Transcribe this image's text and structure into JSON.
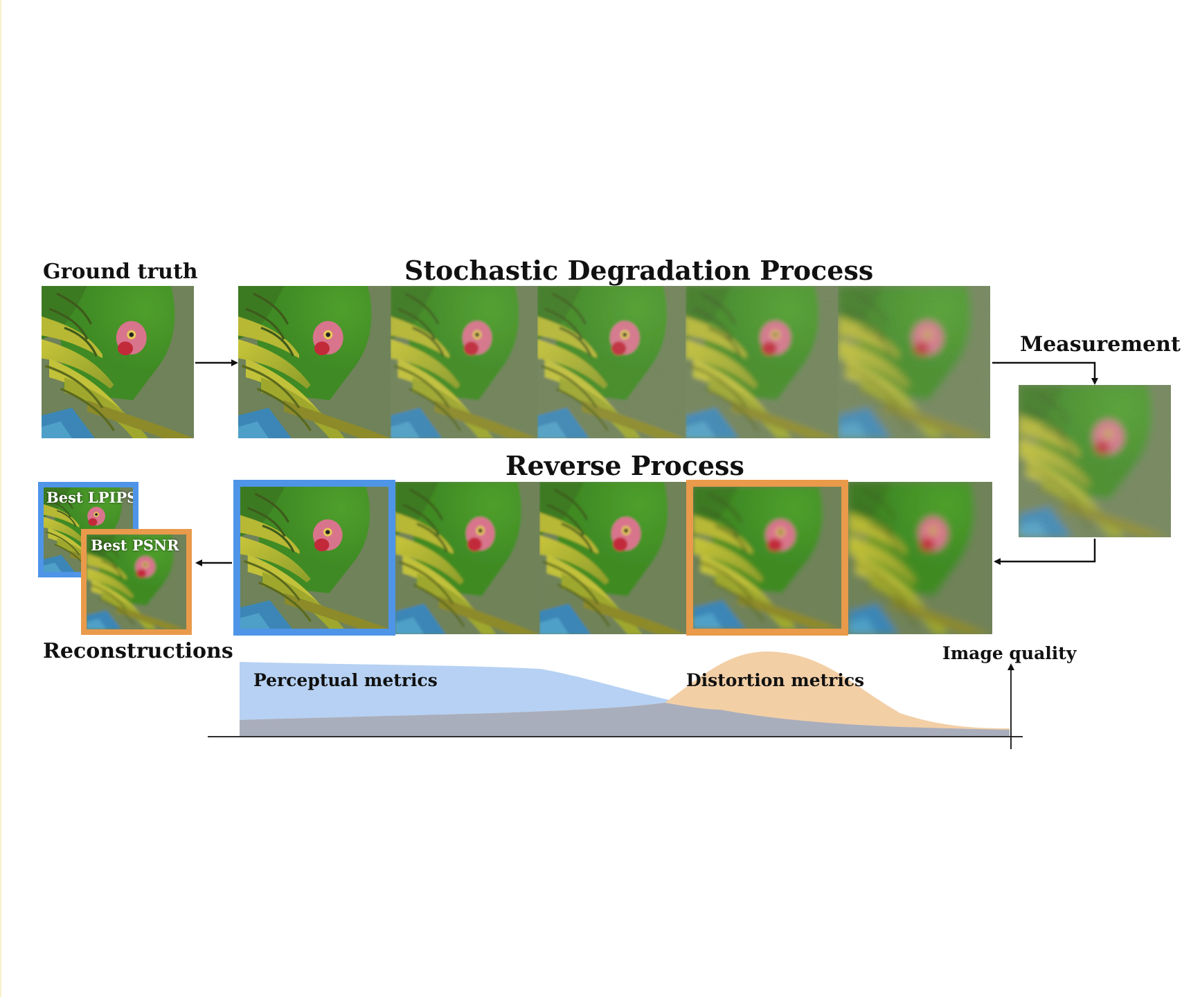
{
  "labels": {
    "ground_truth": "Ground truth",
    "degradation_title": "Stochastic Degradation Process",
    "measurement": "Measurement",
    "reverse_title": "Reverse Process",
    "best_lpips": "Best LPIPS",
    "best_psnr": "Best PSNR",
    "reconstructions": "Reconstructions",
    "image_quality": "Image quality",
    "perceptual_metrics": "Perceptual metrics",
    "distortion_metrics": "Distortion metrics"
  },
  "colors": {
    "perceptual_fill": "#b6d1f3",
    "distortion_fill": "#f3cfa6",
    "overlap_fill": "#a9aebc",
    "highlight_blue": "#4e95e8",
    "highlight_orange": "#e99a4a",
    "parrot_green": "#5f9a36",
    "background_olive": "#6f8259"
  },
  "images": {
    "ground_truth": "parrot-image",
    "degradation_sequence": [
      "parrot-image",
      "parrot-image-noisy-1",
      "parrot-image-noisy-2",
      "parrot-image-noisy-3",
      "parrot-image-noisy-4"
    ],
    "measurement": "parrot-image-degraded",
    "reverse_sequence": [
      "parrot-image-reconstruction-1",
      "parrot-image-reconstruction-2",
      "parrot-image-reconstruction-3",
      "parrot-image-reconstruction-4",
      "parrot-image-reconstruction-5"
    ]
  }
}
